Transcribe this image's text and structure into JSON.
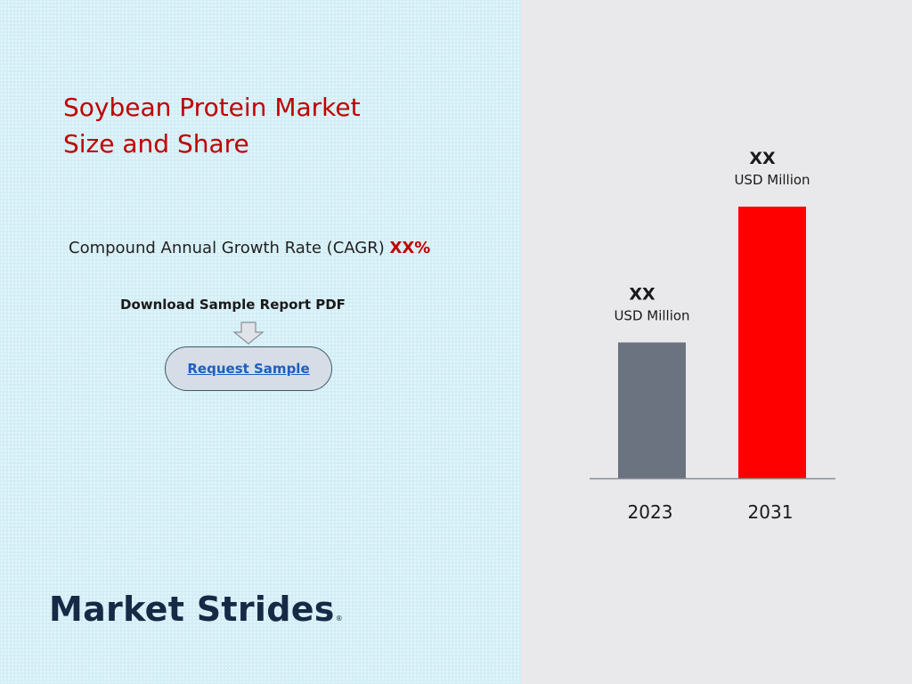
{
  "title": {
    "line1": "Soybean Protein Market",
    "line2": "Size and Share"
  },
  "cagr": {
    "label": "Compound Annual Growth Rate (CAGR)",
    "value": "XX",
    "unit": "%"
  },
  "download": {
    "label": "Download Sample Report PDF",
    "button_label": "Request Sample",
    "arrow_icon": "down-arrow-icon"
  },
  "brand": {
    "name": "Market Strides",
    "reg_mark": "®"
  },
  "colors": {
    "title": "#c00000",
    "bar_2023": "#6b7280",
    "bar_2031": "#ff0000",
    "left_background": "#d3eef6",
    "right_background": "#e9e9eb",
    "brand": "#162a46"
  },
  "chart_data": {
    "type": "bar",
    "categories": [
      "2023",
      "2031"
    ],
    "bar_labels": [
      {
        "value": "XX",
        "unit": "USD Million"
      },
      {
        "value": "XX",
        "unit": "USD Million"
      }
    ],
    "relative_heights": [
      0.5,
      1.0
    ],
    "colors": [
      "#6b7280",
      "#ff0000"
    ],
    "xlabel": "",
    "ylabel": "",
    "grid": false
  }
}
